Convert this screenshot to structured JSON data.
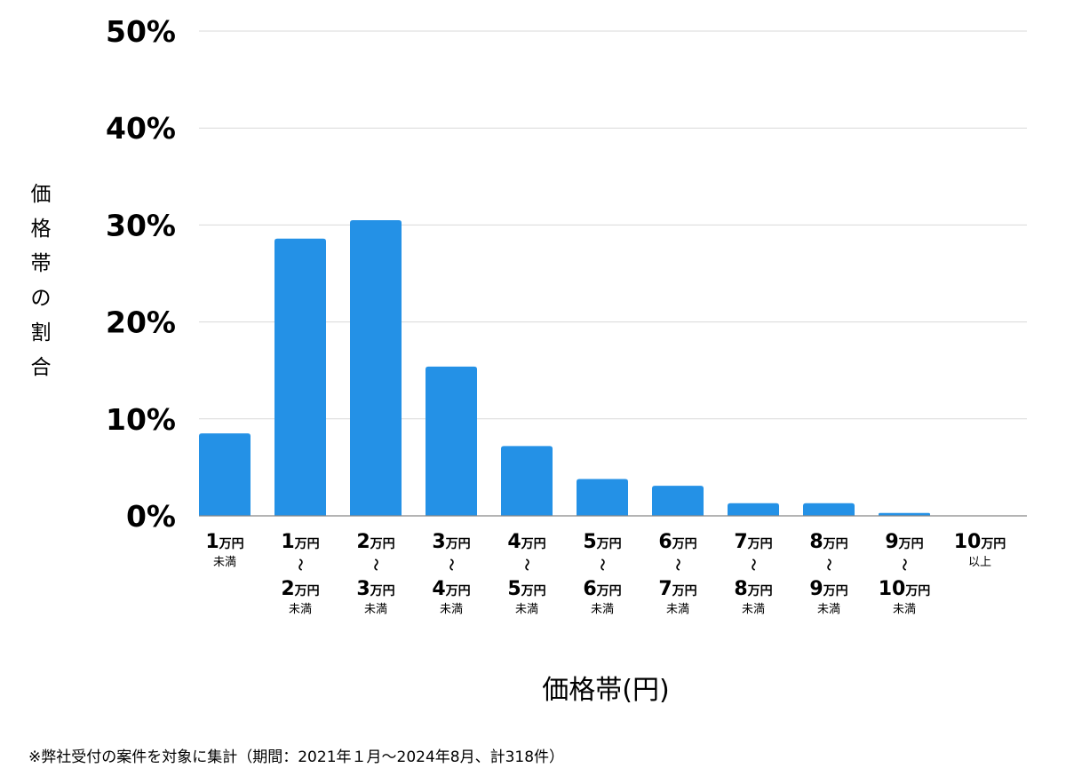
{
  "chart_data": {
    "type": "bar",
    "title": "",
    "xlabel": "価格帯(円)",
    "ylabel": "価格帯の割合",
    "ylim": [
      0,
      50
    ],
    "yticks": [
      0,
      10,
      20,
      30,
      40,
      50
    ],
    "ytick_suffix": "%",
    "grid": true,
    "bar_color": "#2491e6",
    "categories": [
      {
        "lines": [
          {
            "num": "1",
            "unit": "万円"
          }
        ],
        "note": "未満"
      },
      {
        "lines": [
          {
            "num": "1",
            "unit": "万円"
          },
          {
            "num": "2",
            "unit": "万円"
          }
        ],
        "sep": "〜",
        "note": "未満"
      },
      {
        "lines": [
          {
            "num": "2",
            "unit": "万円"
          },
          {
            "num": "3",
            "unit": "万円"
          }
        ],
        "sep": "〜",
        "note": "未満"
      },
      {
        "lines": [
          {
            "num": "3",
            "unit": "万円"
          },
          {
            "num": "4",
            "unit": "万円"
          }
        ],
        "sep": "〜",
        "note": "未満"
      },
      {
        "lines": [
          {
            "num": "4",
            "unit": "万円"
          },
          {
            "num": "5",
            "unit": "万円"
          }
        ],
        "sep": "〜",
        "note": "未満"
      },
      {
        "lines": [
          {
            "num": "5",
            "unit": "万円"
          },
          {
            "num": "6",
            "unit": "万円"
          }
        ],
        "sep": "〜",
        "note": "未満"
      },
      {
        "lines": [
          {
            "num": "6",
            "unit": "万円"
          },
          {
            "num": "7",
            "unit": "万円"
          }
        ],
        "sep": "〜",
        "note": "未満"
      },
      {
        "lines": [
          {
            "num": "7",
            "unit": "万円"
          },
          {
            "num": "8",
            "unit": "万円"
          }
        ],
        "sep": "〜",
        "note": "未満"
      },
      {
        "lines": [
          {
            "num": "8",
            "unit": "万円"
          },
          {
            "num": "9",
            "unit": "万円"
          }
        ],
        "sep": "〜",
        "note": "未満"
      },
      {
        "lines": [
          {
            "num": "9",
            "unit": "万円"
          },
          {
            "num": "10",
            "unit": "万円"
          }
        ],
        "sep": "〜",
        "note": "未満"
      },
      {
        "lines": [
          {
            "num": "10",
            "unit": "万円"
          }
        ],
        "note": "以上"
      }
    ],
    "values": [
      8.5,
      28.6,
      30.5,
      15.4,
      7.2,
      3.8,
      3.1,
      1.3,
      1.3,
      0.3,
      0
    ]
  },
  "footnote": "※弊社受付の案件を対象に集計（期間：2021年１月〜2024年8月、計318件）"
}
